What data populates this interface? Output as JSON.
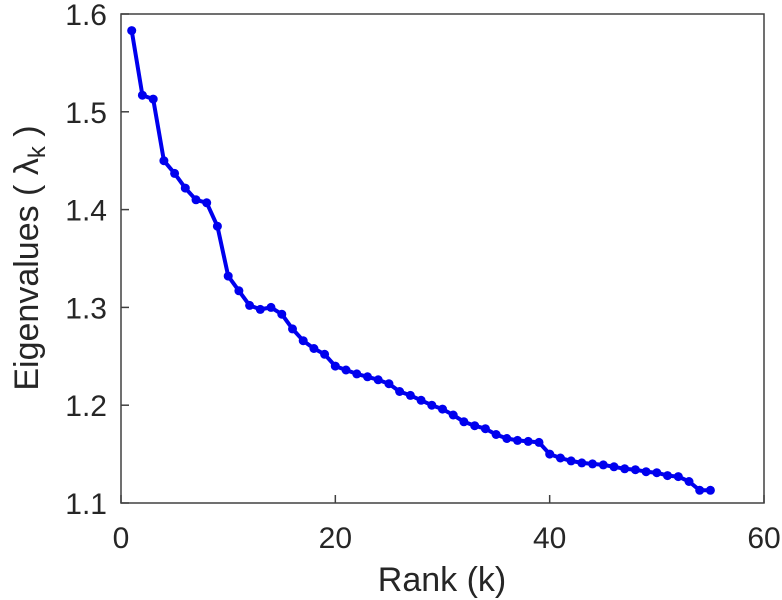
{
  "figure": {
    "background": "#ffffff"
  },
  "chart_data": {
    "type": "line",
    "title": "",
    "xlabel": "Rank (k)",
    "ylabel": "Eigenvalues ( λk )",
    "ylabel_parts": {
      "prefix": "Eigenvalues ( λ",
      "sub": "k",
      "suffix": " )"
    },
    "xlim": [
      0,
      60
    ],
    "ylim": [
      1.1,
      1.6
    ],
    "x_ticks": [
      0,
      20,
      40,
      60
    ],
    "x_tick_labels": [
      "0",
      "20",
      "40",
      "60"
    ],
    "y_ticks": [
      1.1,
      1.2,
      1.3,
      1.4,
      1.5,
      1.6
    ],
    "y_tick_labels": [
      "1.1",
      "1.2",
      "1.3",
      "1.4",
      "1.5",
      "1.6"
    ],
    "grid": false,
    "legend": null,
    "line_color": "#0000EE",
    "marker": "filled-circle",
    "marker_color": "#0000EE",
    "axis_color": "#404040",
    "tick_label_color": "#262626",
    "series": [
      {
        "name": "eigenvalues",
        "x": [
          1,
          2,
          3,
          4,
          5,
          6,
          7,
          8,
          9,
          10,
          11,
          12,
          13,
          14,
          15,
          16,
          17,
          18,
          19,
          20,
          21,
          22,
          23,
          24,
          25,
          26,
          27,
          28,
          29,
          30,
          31,
          32,
          33,
          34,
          35,
          36,
          37,
          38,
          39,
          40,
          41,
          42,
          43,
          44,
          45,
          46,
          47,
          48,
          49,
          50,
          51,
          52,
          53,
          54,
          55
        ],
        "y": [
          1.583,
          1.517,
          1.513,
          1.45,
          1.437,
          1.422,
          1.41,
          1.407,
          1.383,
          1.332,
          1.317,
          1.302,
          1.298,
          1.3,
          1.293,
          1.278,
          1.266,
          1.258,
          1.252,
          1.24,
          1.236,
          1.232,
          1.229,
          1.226,
          1.222,
          1.214,
          1.21,
          1.205,
          1.2,
          1.196,
          1.19,
          1.183,
          1.179,
          1.176,
          1.17,
          1.166,
          1.164,
          1.163,
          1.162,
          1.15,
          1.146,
          1.143,
          1.141,
          1.14,
          1.139,
          1.137,
          1.135,
          1.134,
          1.132,
          1.131,
          1.128,
          1.127,
          1.122,
          1.113,
          1.113
        ]
      }
    ]
  }
}
